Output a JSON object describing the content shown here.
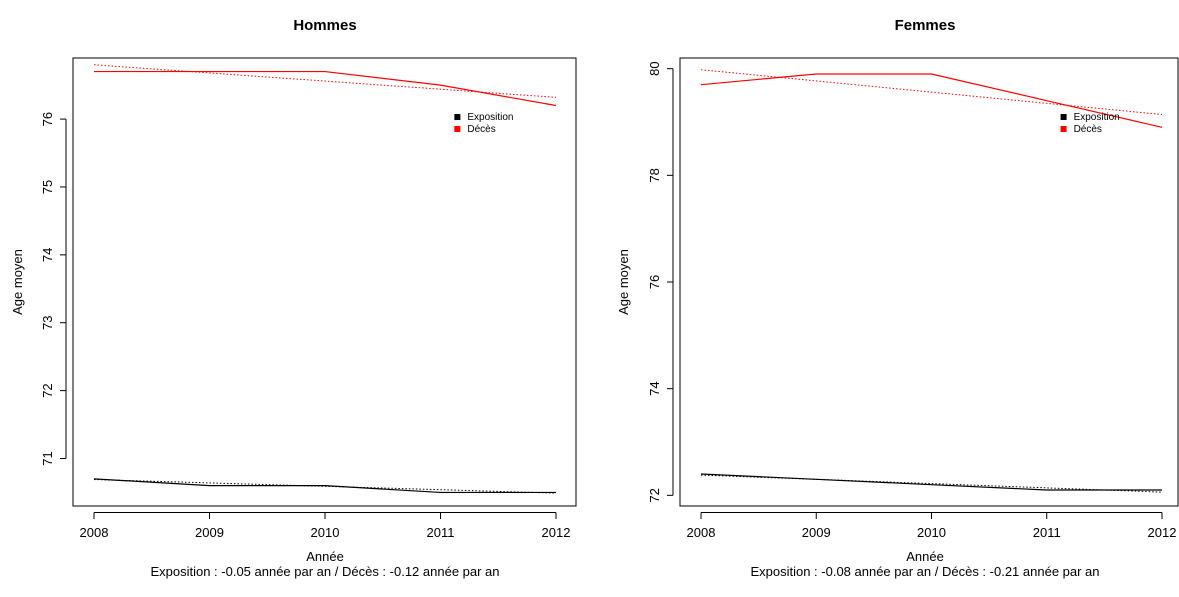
{
  "colors": {
    "exposition": "#000000",
    "deces": "#ff0000"
  },
  "chart_data": [
    {
      "type": "line",
      "title": "Hommes",
      "xlabel": "Année",
      "subtitle": "Exposition : -0.05 année par an / Décès : -0.12 année par an",
      "ylabel": "Age moyen",
      "x": [
        2008,
        2009,
        2010,
        2011,
        2012
      ],
      "xlim": [
        2008,
        2012
      ],
      "ylim": [
        70.3,
        76.9
      ],
      "yticks": [
        71,
        72,
        73,
        74,
        75,
        76
      ],
      "grid": false,
      "legend_position": "top-right",
      "legend": [
        "Exposition",
        "Décès"
      ],
      "series": [
        {
          "name": "Exposition",
          "color": "#000000",
          "values": [
            70.7,
            70.6,
            70.6,
            70.5,
            70.5
          ],
          "trend": {
            "slope": -0.05,
            "start": 70.69,
            "end": 70.49
          }
        },
        {
          "name": "Décès",
          "color": "#ff0000",
          "values": [
            76.7,
            76.7,
            76.7,
            76.5,
            76.2
          ],
          "trend": {
            "slope": -0.12,
            "start": 76.8,
            "end": 76.32
          }
        }
      ]
    },
    {
      "type": "line",
      "title": "Femmes",
      "xlabel": "Année",
      "subtitle": "Exposition : -0.08 année par an / Décès : -0.21 année par an",
      "ylabel": "Age moyen",
      "x": [
        2008,
        2009,
        2010,
        2011,
        2012
      ],
      "xlim": [
        2008,
        2012
      ],
      "ylim": [
        71.8,
        80.2
      ],
      "yticks": [
        72,
        74,
        76,
        78,
        80
      ],
      "grid": false,
      "legend_position": "top-right",
      "legend": [
        "Exposition",
        "Décès"
      ],
      "series": [
        {
          "name": "Exposition",
          "color": "#000000",
          "values": [
            72.4,
            72.3,
            72.2,
            72.1,
            72.1
          ],
          "trend": {
            "slope": -0.08,
            "start": 72.38,
            "end": 72.06
          }
        },
        {
          "name": "Décès",
          "color": "#ff0000",
          "values": [
            79.7,
            79.9,
            79.9,
            79.4,
            78.9
          ],
          "trend": {
            "slope": -0.21,
            "start": 79.98,
            "end": 79.14
          }
        }
      ]
    }
  ]
}
